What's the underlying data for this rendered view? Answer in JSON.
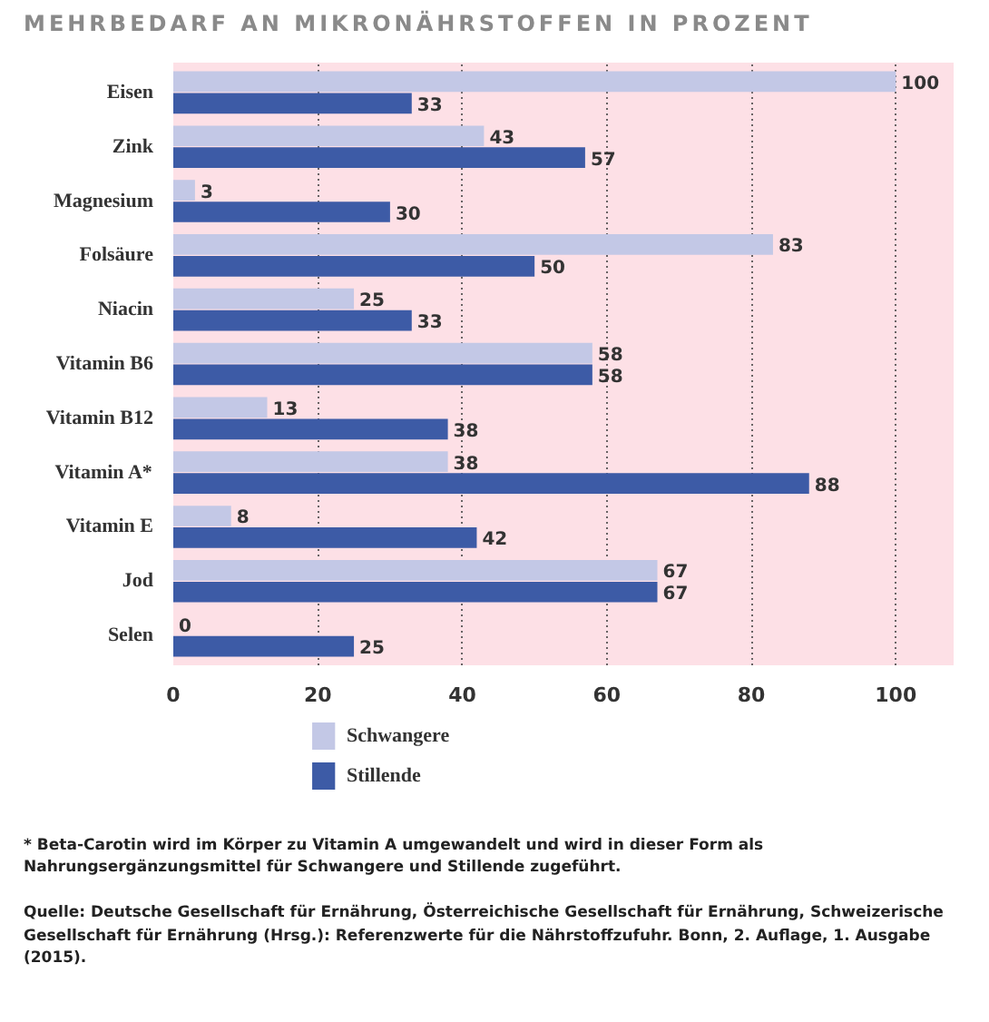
{
  "chart_data": {
    "type": "bar",
    "orientation": "horizontal",
    "title": "MEHRBEDARF AN MIKRONÄHRSTOFFEN IN PROZENT",
    "categories": [
      "Eisen",
      "Zink",
      "Magnesium",
      "Folsäure",
      "Niacin",
      "Vitamin B6",
      "Vitamin B12",
      "Vitamin A*",
      "Vitamin E",
      "Jod",
      "Selen"
    ],
    "series": [
      {
        "name": "Schwangere",
        "color": "#c3c8e6",
        "values": [
          100,
          43,
          3,
          83,
          25,
          58,
          13,
          38,
          8,
          67,
          0
        ]
      },
      {
        "name": "Stillende",
        "color": "#3d5ba6",
        "values": [
          33,
          57,
          30,
          50,
          33,
          58,
          38,
          88,
          42,
          67,
          25
        ]
      }
    ],
    "xlim": [
      0,
      108
    ],
    "xticks": [
      0,
      20,
      40,
      60,
      80,
      100
    ],
    "grid": "x",
    "legend": "bottom",
    "data_labels": true,
    "annotations": [
      "* Beta-Carotin wird im Körper zu Vitamin A umgewandelt und wird in dieser Form als Nahrungsergänzungsmittel für Schwangere und Stillende zugeführt.",
      "Quelle: Deutsche Gesellschaft für Ernährung, Österreichische Gesellschaft für Ernährung, Schweizerische Gesellschaft für Ernährung (Hrsg.): Referenzwerte für die Nährstoffzufuhr. Bonn, 2. Auflage, 1. Ausgabe (2015)."
    ]
  }
}
